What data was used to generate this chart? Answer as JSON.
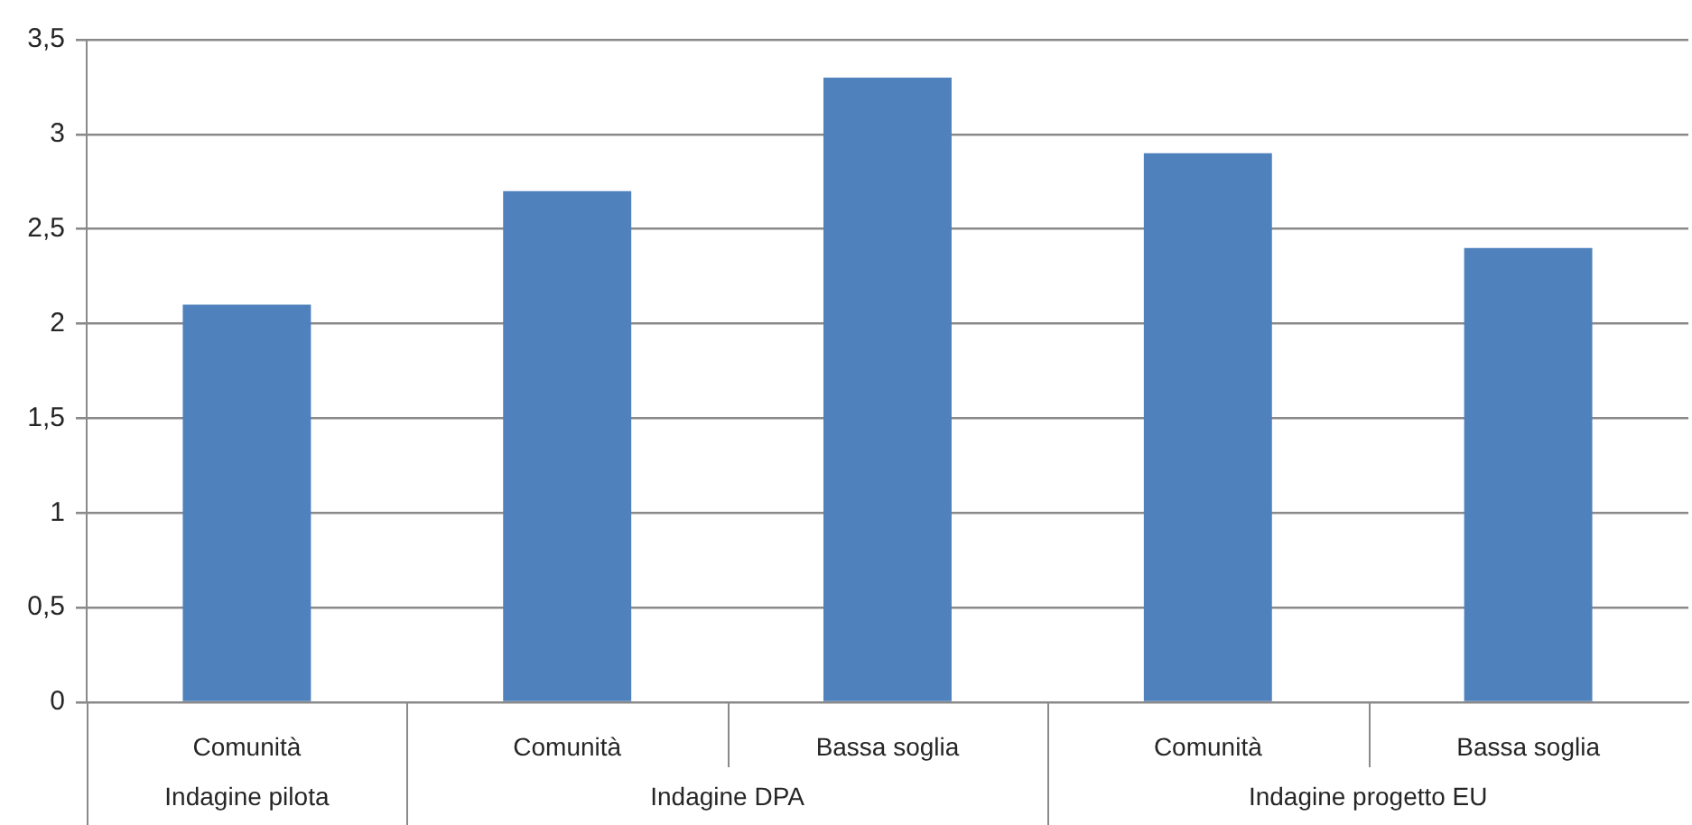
{
  "chart_data": {
    "type": "bar",
    "categories": [
      "Comunità",
      "Comunità",
      "Bassa soglia",
      "Comunità",
      "Bassa soglia"
    ],
    "values": [
      2.1,
      2.7,
      3.3,
      2.9,
      2.4
    ],
    "color": "#4f81bd",
    "ylim": [
      0,
      3.5
    ],
    "yticks": [
      0,
      {
        "value": 0.5,
        "label": "0,5"
      },
      1,
      {
        "value": 1.5,
        "label": "1,5"
      },
      2,
      {
        "value": 2.5,
        "label": "2,5"
      },
      3,
      {
        "value": 3.5,
        "label": "3,5"
      }
    ],
    "grid": "y",
    "annotations": [
      "Indagine pilota",
      "Indagine DPA",
      "Indagine progetto EU"
    ]
  }
}
